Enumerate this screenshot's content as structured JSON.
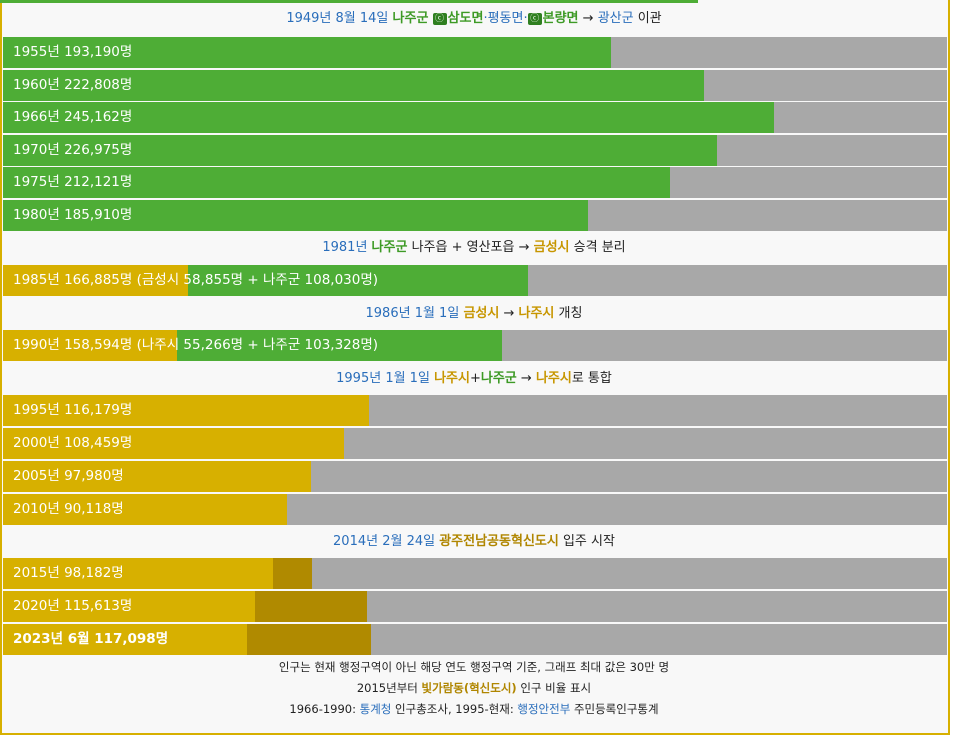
{
  "colors": {
    "county_green": "#4ead36",
    "city_gold": "#d7b000",
    "innovation_dark": "#b08a00",
    "remainder_gray": "#a8a8a8",
    "link_blue": "#2a6ebb"
  },
  "notes": {
    "n1949": {
      "date": "1949년 8월 14일",
      "county": "나주군",
      "badge1": "ⓒ",
      "place1": "삼도면",
      "sep1": "·평동면·",
      "badge2": "ⓒ",
      "place2": "본량면",
      "arrow": "→",
      "target": "광산군",
      "suffix": "이관"
    },
    "n1981": {
      "date": "1981년",
      "county": "나주군",
      "middle": "나주읍 + 영산포읍 →",
      "city": "금성시",
      "suffix": "승격 분리"
    },
    "n1986": {
      "date": "1986년 1월 1일",
      "city_old": "금성시",
      "arrow": "→",
      "city_new": "나주시",
      "suffix": "개칭"
    },
    "n1995": {
      "date": "1995년 1월 1일",
      "city": "나주시",
      "plus": "+",
      "county": "나주군",
      "arrow": "→",
      "result": "나주시",
      "suffix": "로 통합"
    },
    "n2014": {
      "date": "2014년 2월 24일",
      "place": "광주전남공동혁신도시",
      "suffix": "입주 시작"
    }
  },
  "chart_data": {
    "type": "bar",
    "orientation": "horizontal",
    "max_value": 300000,
    "unit": "명",
    "rows": [
      {
        "label": "1955년 193,190명",
        "total": 193190,
        "county": 193190
      },
      {
        "label": "1960년 222,808명",
        "total": 222808,
        "county": 222808
      },
      {
        "label": "1966년 245,162명",
        "total": 245162,
        "county": 245162
      },
      {
        "label": "1970년 226,975명",
        "total": 226975,
        "county": 226975
      },
      {
        "label": "1975년 212,121명",
        "total": 212121,
        "county": 212121
      },
      {
        "label": "1980년 185,910명",
        "total": 185910,
        "county": 185910
      },
      {
        "label": "1985년 166,885명 (금성시 58,855명 + 나주군 108,030명)",
        "total": 166885,
        "city": 58855,
        "county": 108030
      },
      {
        "label": "1990년 158,594명 (나주시 55,266명 + 나주군 103,328명)",
        "total": 158594,
        "city": 55266,
        "county": 103328
      },
      {
        "label": "1995년 116,179명",
        "total": 116179,
        "city": 116179
      },
      {
        "label": "2000년 108,459명",
        "total": 108459,
        "city": 108459
      },
      {
        "label": "2005년 97,980명",
        "total": 97980,
        "city": 97980
      },
      {
        "label": "2010년 90,118명",
        "total": 90118,
        "city": 90118
      },
      {
        "label": "2015년 98,182명",
        "total": 98182,
        "innovation_share": 0.126
      },
      {
        "label": "2020년 115,613명",
        "total": 115613,
        "innovation_share": 0.306
      },
      {
        "label": "2023년 6월 117,098명",
        "total": 117098,
        "innovation_share": 0.338,
        "bold": true
      }
    ]
  },
  "footer": {
    "line1": "인구는 현재 행정구역이 아닌 해당 연도 행정구역 기준, 그래프 최대 값은 30만 명",
    "line2_pre": "2015년부터",
    "line2_highlight": "빛가람동(혁신도시)",
    "line2_post": "인구 비율 표시",
    "line3_pre": "1966-1990:",
    "line3_link1": "통계청",
    "line3_mid": "인구총조사, 1995-현재:",
    "line3_link2": "행정안전부",
    "line3_post": "주민등록인구통계"
  }
}
